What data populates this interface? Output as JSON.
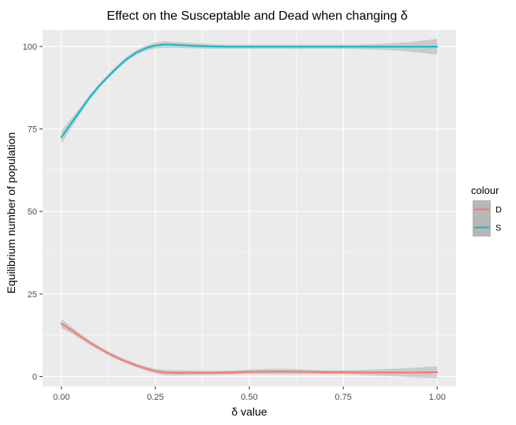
{
  "chart_data": {
    "type": "line",
    "title": "Effect on the Susceptable and Dead when changing δ",
    "xlabel": "δ value",
    "ylabel": "Equilibrium number of population",
    "xlim": [
      -0.05,
      1.05
    ],
    "ylim": [
      -3,
      105
    ],
    "x_ticks": [
      0.0,
      0.25,
      0.5,
      0.75,
      1.0
    ],
    "x_tick_labels": [
      "0.00",
      "0.25",
      "0.50",
      "0.75",
      "1.00"
    ],
    "y_ticks": [
      0,
      25,
      50,
      75,
      100
    ],
    "y_tick_labels": [
      "0",
      "25",
      "50",
      "75",
      "100"
    ],
    "grid": true,
    "legend": {
      "title": "colour",
      "placement": "right",
      "entries": [
        "D",
        "S"
      ]
    },
    "series": [
      {
        "name": "D",
        "color": "#F8766D",
        "x": [
          0.0,
          0.025,
          0.05,
          0.075,
          0.1,
          0.125,
          0.15,
          0.175,
          0.2,
          0.225,
          0.25,
          0.275,
          0.3,
          0.35,
          0.4,
          0.45,
          0.5,
          0.55,
          0.6,
          0.65,
          0.7,
          0.75,
          0.8,
          0.85,
          0.9,
          0.95,
          1.0
        ],
        "y": [
          16,
          14.2,
          12.2,
          10.3,
          8.6,
          7.0,
          5.6,
          4.4,
          3.3,
          2.4,
          1.6,
          1.2,
          1.1,
          1.1,
          1.1,
          1.2,
          1.4,
          1.5,
          1.5,
          1.4,
          1.3,
          1.3,
          1.2,
          1.2,
          1.2,
          1.2,
          1.3
        ],
        "ci": [
          1.4,
          1.0,
          0.8,
          0.7,
          0.6,
          0.6,
          0.6,
          0.6,
          0.6,
          0.6,
          0.7,
          0.8,
          0.8,
          0.7,
          0.6,
          0.6,
          0.7,
          0.8,
          0.8,
          0.7,
          0.6,
          0.6,
          0.8,
          1.0,
          1.2,
          1.5,
          1.8
        ]
      },
      {
        "name": "S",
        "color": "#00BFC4",
        "x": [
          0.0,
          0.025,
          0.05,
          0.075,
          0.1,
          0.125,
          0.15,
          0.175,
          0.2,
          0.225,
          0.25,
          0.275,
          0.3,
          0.35,
          0.4,
          0.45,
          0.5,
          0.55,
          0.6,
          0.65,
          0.7,
          0.75,
          0.8,
          0.85,
          0.9,
          0.95,
          1.0
        ],
        "y": [
          72.5,
          76.5,
          80.5,
          84.5,
          88.0,
          91.0,
          93.8,
          96.3,
          98.2,
          99.5,
          100.3,
          100.6,
          100.5,
          100.2,
          100.0,
          99.9,
          99.9,
          99.9,
          99.9,
          99.9,
          99.9,
          99.9,
          99.9,
          99.9,
          99.9,
          99.9,
          99.9
        ],
        "ci": [
          2.0,
          1.4,
          1.0,
          0.8,
          0.7,
          0.7,
          0.7,
          0.7,
          0.7,
          0.8,
          0.9,
          1.0,
          0.9,
          0.8,
          0.7,
          0.6,
          0.6,
          0.6,
          0.6,
          0.6,
          0.6,
          0.6,
          0.7,
          0.9,
          1.2,
          1.7,
          2.4
        ]
      }
    ]
  }
}
